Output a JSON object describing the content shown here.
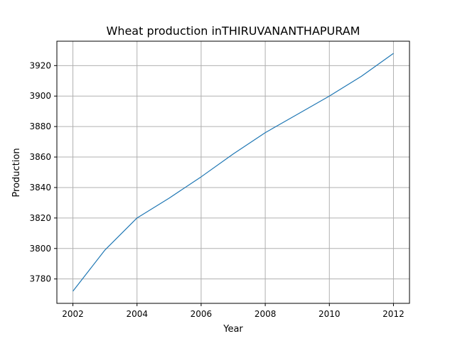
{
  "chart_data": {
    "type": "line",
    "title": "Wheat production inTHIRUVANANTHAPURAM",
    "xlabel": "Year",
    "ylabel": "Production",
    "xlim": [
      2001.5,
      2012.5
    ],
    "ylim": [
      3764,
      3936
    ],
    "xticks": [
      2002,
      2004,
      2006,
      2008,
      2010,
      2012
    ],
    "yticks": [
      3780,
      3800,
      3820,
      3840,
      3860,
      3880,
      3900,
      3920
    ],
    "grid": true,
    "series_color": "#1f77b4",
    "x": [
      2002,
      2003,
      2004,
      2005,
      2006,
      2007,
      2008,
      2009,
      2010,
      2011,
      2012
    ],
    "y": [
      3772,
      3799,
      3820,
      3833,
      3847,
      3862,
      3876,
      3888,
      3900,
      3913,
      3928
    ]
  }
}
